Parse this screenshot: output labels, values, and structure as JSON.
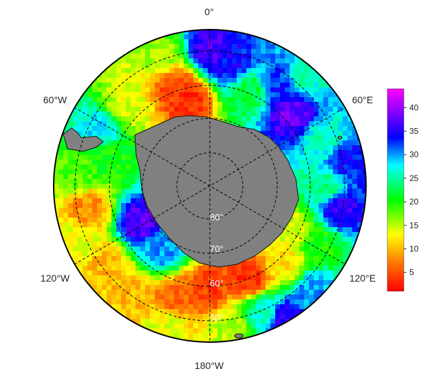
{
  "figure": {
    "type": "south-polar-stereographic-map",
    "colormap": "rainbow",
    "land_color": "#808080",
    "grid_style": "dashed"
  },
  "longitude_labels": {
    "top": "0°",
    "upper_left": "60°W",
    "upper_right": "60°E",
    "lower_left": "120°W",
    "lower_right": "120°E",
    "bottom": "180°W"
  },
  "latitude_labels": [
    "80°",
    "70°",
    "60°",
    "50°"
  ],
  "colorbar": {
    "min": 1,
    "max": 44,
    "ticks": [
      "40",
      "35",
      "30",
      "25",
      "20",
      "15",
      "10",
      "5"
    ],
    "colors": [
      "#ff0000",
      "#ff8000",
      "#ffff00",
      "#00ff00",
      "#00ffff",
      "#0000ff",
      "#8000ff",
      "#ff00ff"
    ]
  }
}
